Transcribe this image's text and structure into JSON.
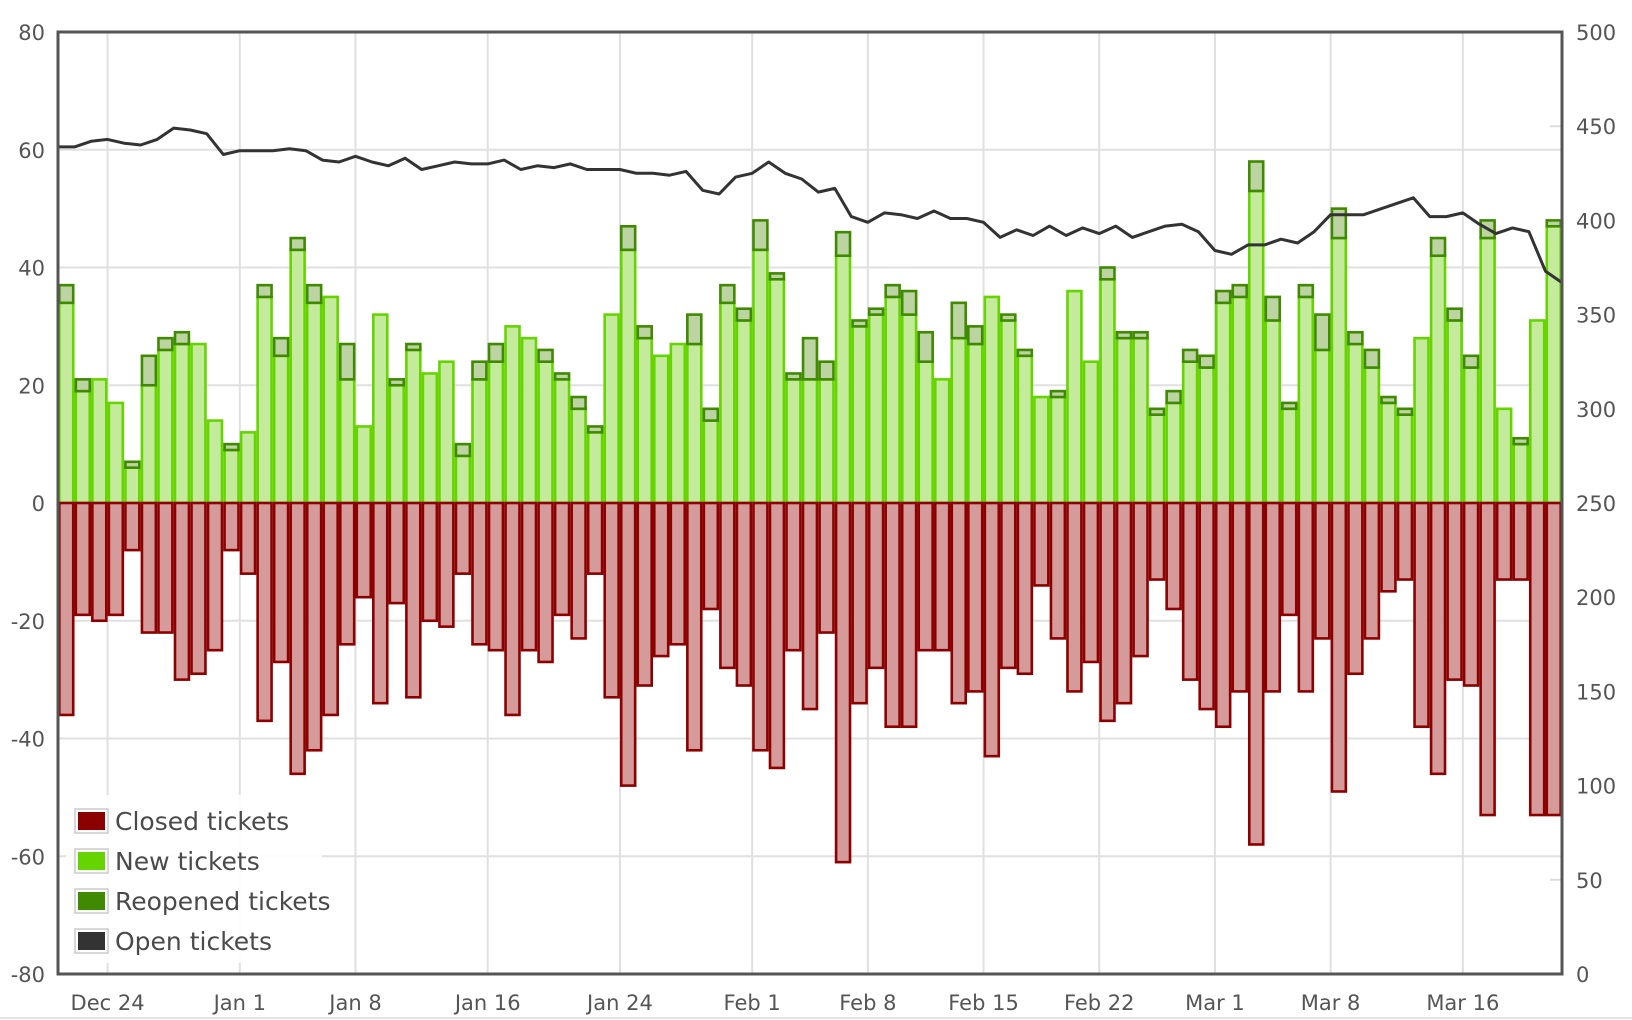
{
  "chart_data": {
    "type": "bar",
    "title": "",
    "xlabel": "",
    "ylabel": "",
    "y2label": "",
    "ylim": [
      -80,
      80
    ],
    "y2lim": [
      0,
      500
    ],
    "yticks": [
      "80",
      "60",
      "40",
      "20",
      "0",
      "-20",
      "-40",
      "-60",
      "-80"
    ],
    "y2ticks": [
      "500",
      "450",
      "400",
      "350",
      "300",
      "250",
      "200",
      "150",
      "100",
      "50",
      "0"
    ],
    "grid": true,
    "legend_position": "bottom-left",
    "day_count": 91,
    "xticks": [
      {
        "label": "Dec 24",
        "day": 3
      },
      {
        "label": "Jan 1",
        "day": 11
      },
      {
        "label": "Jan 8",
        "day": 18
      },
      {
        "label": "Jan 16",
        "day": 26
      },
      {
        "label": "Jan 24",
        "day": 34
      },
      {
        "label": "Feb 1",
        "day": 42
      },
      {
        "label": "Feb 8",
        "day": 49
      },
      {
        "label": "Feb 15",
        "day": 56
      },
      {
        "label": "Feb 22",
        "day": 63
      },
      {
        "label": "Mar 1",
        "day": 70
      },
      {
        "label": "Mar 8",
        "day": 77
      },
      {
        "label": "Mar 16",
        "day": 85
      }
    ],
    "series": [
      {
        "name": "Closed tickets",
        "axis": "left",
        "color": "#8b0000",
        "values": [
          -36,
          -19,
          -20,
          -19,
          -8,
          -22,
          -22,
          -30,
          -29,
          -25,
          -8,
          -12,
          -37,
          -27,
          -46,
          -42,
          -36,
          -24,
          -16,
          -34,
          -17,
          -33,
          -20,
          -21,
          -12,
          -24,
          -25,
          -36,
          -25,
          -27,
          -19,
          -23,
          -12,
          -33,
          -48,
          -31,
          -26,
          -24,
          -42,
          -18,
          -28,
          -31,
          -42,
          -45,
          -25,
          -35,
          -22,
          -61,
          -34,
          -28,
          -38,
          -38,
          -25,
          -25,
          -34,
          -32,
          -43,
          -28,
          -29,
          -14,
          -23,
          -32,
          -27,
          -37,
          -34,
          -26,
          -13,
          -18,
          -30,
          -35,
          -38,
          -32,
          -58,
          -32,
          -19,
          -32,
          -23,
          -49,
          -29,
          -23,
          -15,
          -13,
          -38,
          -46,
          -30,
          -31,
          -53,
          -13,
          -13,
          -53,
          -53
        ]
      },
      {
        "name": "New tickets",
        "axis": "left",
        "color": "#66d400",
        "values": [
          34,
          19,
          21,
          17,
          6,
          20,
          26,
          27,
          27,
          14,
          9,
          12,
          35,
          25,
          43,
          34,
          35,
          21,
          13,
          32,
          20,
          26,
          22,
          24,
          8,
          21,
          24,
          30,
          28,
          24,
          21,
          16,
          12,
          32,
          43,
          28,
          25,
          27,
          27,
          14,
          34,
          31,
          43,
          38,
          21,
          21,
          21,
          42,
          30,
          32,
          35,
          32,
          24,
          21,
          28,
          27,
          35,
          31,
          25,
          18,
          18,
          36,
          24,
          38,
          28,
          28,
          15,
          17,
          24,
          23,
          34,
          35,
          53,
          31,
          16,
          35,
          26,
          45,
          27,
          23,
          17,
          15,
          28,
          42,
          31,
          23,
          45,
          16,
          10,
          31,
          47
        ]
      },
      {
        "name": "Reopened tickets",
        "axis": "left",
        "color": "#3f8a00",
        "values": [
          3,
          2,
          0,
          0,
          1,
          5,
          2,
          2,
          0,
          0,
          1,
          0,
          2,
          3,
          2,
          3,
          0,
          6,
          0,
          0,
          1,
          1,
          0,
          0,
          2,
          3,
          3,
          0,
          0,
          2,
          1,
          2,
          1,
          0,
          4,
          2,
          0,
          0,
          5,
          2,
          3,
          2,
          5,
          1,
          1,
          7,
          3,
          4,
          1,
          1,
          2,
          4,
          5,
          0,
          6,
          3,
          0,
          1,
          1,
          0,
          1,
          0,
          0,
          2,
          1,
          1,
          1,
          2,
          2,
          2,
          2,
          2,
          5,
          4,
          1,
          2,
          6,
          5,
          2,
          3,
          1,
          1,
          0,
          3,
          2,
          2,
          3,
          0,
          1,
          0,
          1
        ]
      },
      {
        "name": "Open tickets",
        "axis": "right",
        "type": "line",
        "color": "#333333",
        "values": [
          439,
          439,
          442,
          443,
          441,
          440,
          443,
          449,
          448,
          446,
          435,
          437,
          437,
          437,
          438,
          437,
          432,
          431,
          434,
          431,
          429,
          433,
          427,
          429,
          431,
          430,
          430,
          432,
          427,
          429,
          428,
          430,
          427,
          427,
          427,
          425,
          425,
          424,
          426,
          416,
          414,
          423,
          425,
          431,
          425,
          422,
          415,
          417,
          402,
          399,
          404,
          403,
          401,
          405,
          401,
          401,
          399,
          391,
          395,
          392,
          397,
          392,
          396,
          393,
          397,
          391,
          394,
          397,
          398,
          394,
          384,
          382,
          387,
          387,
          390,
          388,
          394,
          403,
          403,
          403,
          406,
          409,
          412,
          402,
          402,
          404,
          398,
          393,
          396,
          394,
          373,
          367
        ]
      }
    ]
  },
  "legend": {
    "items": [
      {
        "label": "Closed tickets",
        "color": "#8b0000"
      },
      {
        "label": "New tickets",
        "color": "#66d400"
      },
      {
        "label": "Reopened tickets",
        "color": "#3f8a00"
      },
      {
        "label": "Open tickets",
        "color": "#333333"
      }
    ]
  }
}
